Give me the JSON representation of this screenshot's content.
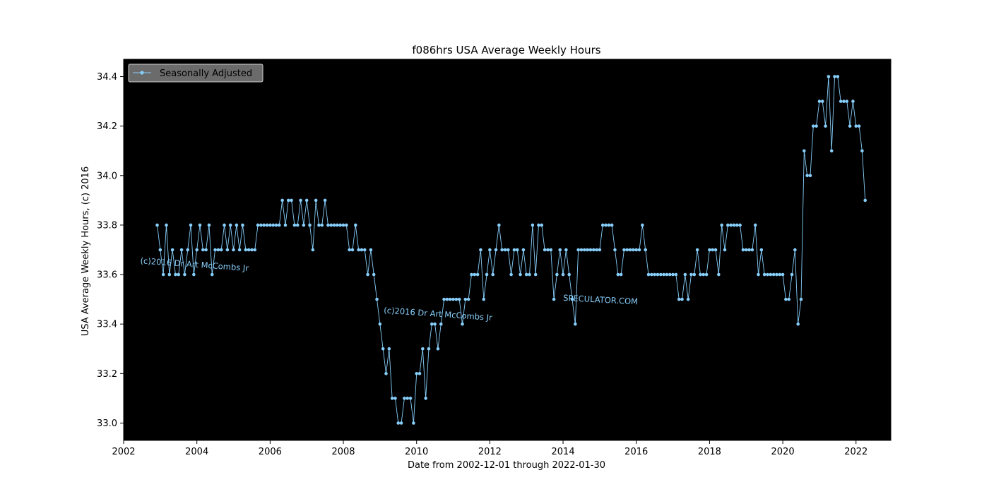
{
  "chart_data": {
    "type": "line",
    "title": "f086hrs USA Average Weekly Hours",
    "xlabel": "Date from 2002-12-01 through 2022-01-30",
    "ylabel": "USA Average Weekly Hours, (c) 2016",
    "xlim": [
      2002.0,
      2022.95
    ],
    "ylim": [
      32.93,
      34.47
    ],
    "x_ticks": [
      2002,
      2004,
      2006,
      2008,
      2010,
      2012,
      2014,
      2016,
      2018,
      2020,
      2022
    ],
    "x_tick_labels": [
      "2002",
      "2004",
      "2006",
      "2008",
      "2010",
      "2012",
      "2014",
      "2016",
      "2018",
      "2020",
      "2022"
    ],
    "y_ticks": [
      33.0,
      33.2,
      33.4,
      33.6,
      33.8,
      34.0,
      34.2,
      34.4
    ],
    "y_tick_labels": [
      "33.0",
      "33.2",
      "33.4",
      "33.6",
      "33.8",
      "34.0",
      "34.2",
      "34.4"
    ],
    "legend_position": "top-left",
    "background": "#000000",
    "series_color": "#87cefa",
    "annotations": [
      {
        "text": "(c)2016 Dr Art McCombs Jr",
        "x": 2002.45,
        "y": 33.645,
        "rotate": 4
      },
      {
        "text": "(c)2016 Dr Art McCombs Jr",
        "x": 2009.1,
        "y": 33.445,
        "rotate": 4
      },
      {
        "text": "SPECULATOR.COM",
        "x": 2014.0,
        "y": 33.495,
        "rotate": 3
      }
    ],
    "series": [
      {
        "name": "Seasonally Adjusted",
        "start_year": 2002,
        "start_month": 12,
        "values": [
          33.8,
          33.7,
          33.6,
          33.8,
          33.6,
          33.7,
          33.6,
          33.6,
          33.7,
          33.6,
          33.7,
          33.8,
          33.6,
          33.7,
          33.8,
          33.7,
          33.7,
          33.8,
          33.6,
          33.7,
          33.7,
          33.7,
          33.8,
          33.7,
          33.8,
          33.7,
          33.8,
          33.7,
          33.8,
          33.7,
          33.7,
          33.7,
          33.7,
          33.8,
          33.8,
          33.8,
          33.8,
          33.8,
          33.8,
          33.8,
          33.8,
          33.9,
          33.8,
          33.9,
          33.9,
          33.8,
          33.8,
          33.9,
          33.8,
          33.9,
          33.8,
          33.7,
          33.9,
          33.8,
          33.8,
          33.9,
          33.8,
          33.8,
          33.8,
          33.8,
          33.8,
          33.8,
          33.8,
          33.7,
          33.7,
          33.8,
          33.7,
          33.7,
          33.7,
          33.6,
          33.7,
          33.6,
          33.5,
          33.4,
          33.3,
          33.2,
          33.3,
          33.1,
          33.1,
          33.0,
          33.0,
          33.1,
          33.1,
          33.1,
          33.0,
          33.2,
          33.2,
          33.3,
          33.1,
          33.3,
          33.4,
          33.4,
          33.3,
          33.4,
          33.5,
          33.5,
          33.5,
          33.5,
          33.5,
          33.5,
          33.4,
          33.5,
          33.5,
          33.6,
          33.6,
          33.6,
          33.7,
          33.5,
          33.6,
          33.7,
          33.6,
          33.7,
          33.8,
          33.7,
          33.7,
          33.7,
          33.6,
          33.7,
          33.7,
          33.6,
          33.7,
          33.6,
          33.6,
          33.8,
          33.6,
          33.8,
          33.8,
          33.7,
          33.7,
          33.7,
          33.5,
          33.6,
          33.7,
          33.6,
          33.7,
          33.6,
          33.5,
          33.4,
          33.7,
          33.7,
          33.7,
          33.7,
          33.7,
          33.7,
          33.7,
          33.7,
          33.8,
          33.8,
          33.8,
          33.8,
          33.7,
          33.6,
          33.6,
          33.7,
          33.7,
          33.7,
          33.7,
          33.7,
          33.7,
          33.8,
          33.7,
          33.6,
          33.6,
          33.6,
          33.6,
          33.6,
          33.6,
          33.6,
          33.6,
          33.6,
          33.6,
          33.5,
          33.5,
          33.6,
          33.5,
          33.6,
          33.6,
          33.7,
          33.6,
          33.6,
          33.6,
          33.7,
          33.7,
          33.7,
          33.6,
          33.8,
          33.7,
          33.8,
          33.8,
          33.8,
          33.8,
          33.8,
          33.7,
          33.7,
          33.7,
          33.7,
          33.8,
          33.6,
          33.7,
          33.6,
          33.6,
          33.6,
          33.6,
          33.6,
          33.6,
          33.6,
          33.5,
          33.5,
          33.6,
          33.7,
          33.4,
          33.5,
          34.1,
          34.0,
          34.0,
          34.2,
          34.2,
          34.3,
          34.3,
          34.2,
          34.4,
          34.1,
          34.4,
          34.4,
          34.3,
          34.3,
          34.3,
          34.2,
          34.3,
          34.2,
          34.2,
          34.1,
          33.9
        ]
      }
    ]
  }
}
